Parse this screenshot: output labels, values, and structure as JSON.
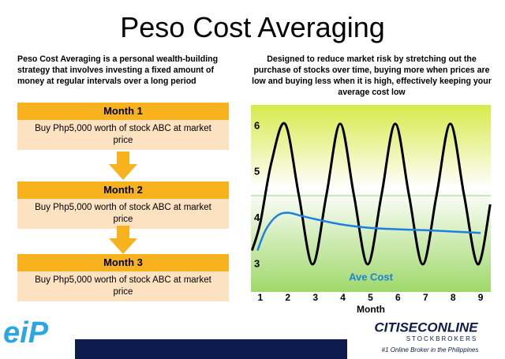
{
  "title": "Peso Cost Averaging",
  "left_intro": "Peso Cost Averaging is a personal wealth-building strategy that involves investing a fixed amount of money at regular intervals over a long period",
  "right_intro": "Designed to reduce market risk by stretching out the purchase of stocks over time, buying more when prices are low and buying less when it is high, effectively keeping your average cost low",
  "steps": [
    {
      "heading": "Month 1",
      "text": "Buy Php5,000 worth of stock ABC at market price"
    },
    {
      "heading": "Month 2",
      "text": "Buy Php5,000 worth of stock ABC at market price"
    },
    {
      "heading": "Month 3",
      "text": "Buy Php5,000 worth of stock ABC at market price"
    }
  ],
  "chart_data": {
    "type": "line",
    "xlabel": "Month",
    "xlim": [
      0.66,
      9.37
    ],
    "xticks": [
      1,
      2,
      3,
      4,
      5,
      6,
      7,
      8,
      9
    ],
    "ylim": [
      2.4,
      6.46
    ],
    "yticks": [
      3,
      4,
      5,
      6
    ],
    "series": [
      {
        "color": "#000000",
        "x": [
          0.7,
          1,
          1.4,
          1.9,
          2.4,
          2.9,
          3.4,
          3.9,
          4.4,
          4.9,
          5.4,
          5.9,
          6.4,
          6.9,
          7.4,
          7.9,
          8.4,
          8.9,
          9.35
        ],
        "values": [
          3.3,
          3.9,
          5.2,
          6.05,
          4.5,
          3.0,
          4.5,
          6.05,
          4.5,
          3.0,
          4.5,
          6.05,
          4.5,
          3.0,
          4.5,
          6.05,
          4.5,
          3.0,
          4.3
        ]
      },
      {
        "name": "Ave Cost",
        "color": "#1e7fe0",
        "x": [
          0.9,
          1.2,
          1.6,
          2,
          2.5,
          3,
          4,
          5,
          6,
          7,
          8,
          9
        ],
        "values": [
          3.3,
          3.75,
          4.05,
          4.12,
          4.05,
          3.98,
          3.86,
          3.79,
          3.76,
          3.74,
          3.71,
          3.68
        ]
      }
    ]
  },
  "footer": {
    "left_logo": "eiP",
    "brand": "CITISECONLINE",
    "brand_sub": "STOCKBROKERS",
    "tagline": "#1 Online Broker in the Philippines"
  }
}
